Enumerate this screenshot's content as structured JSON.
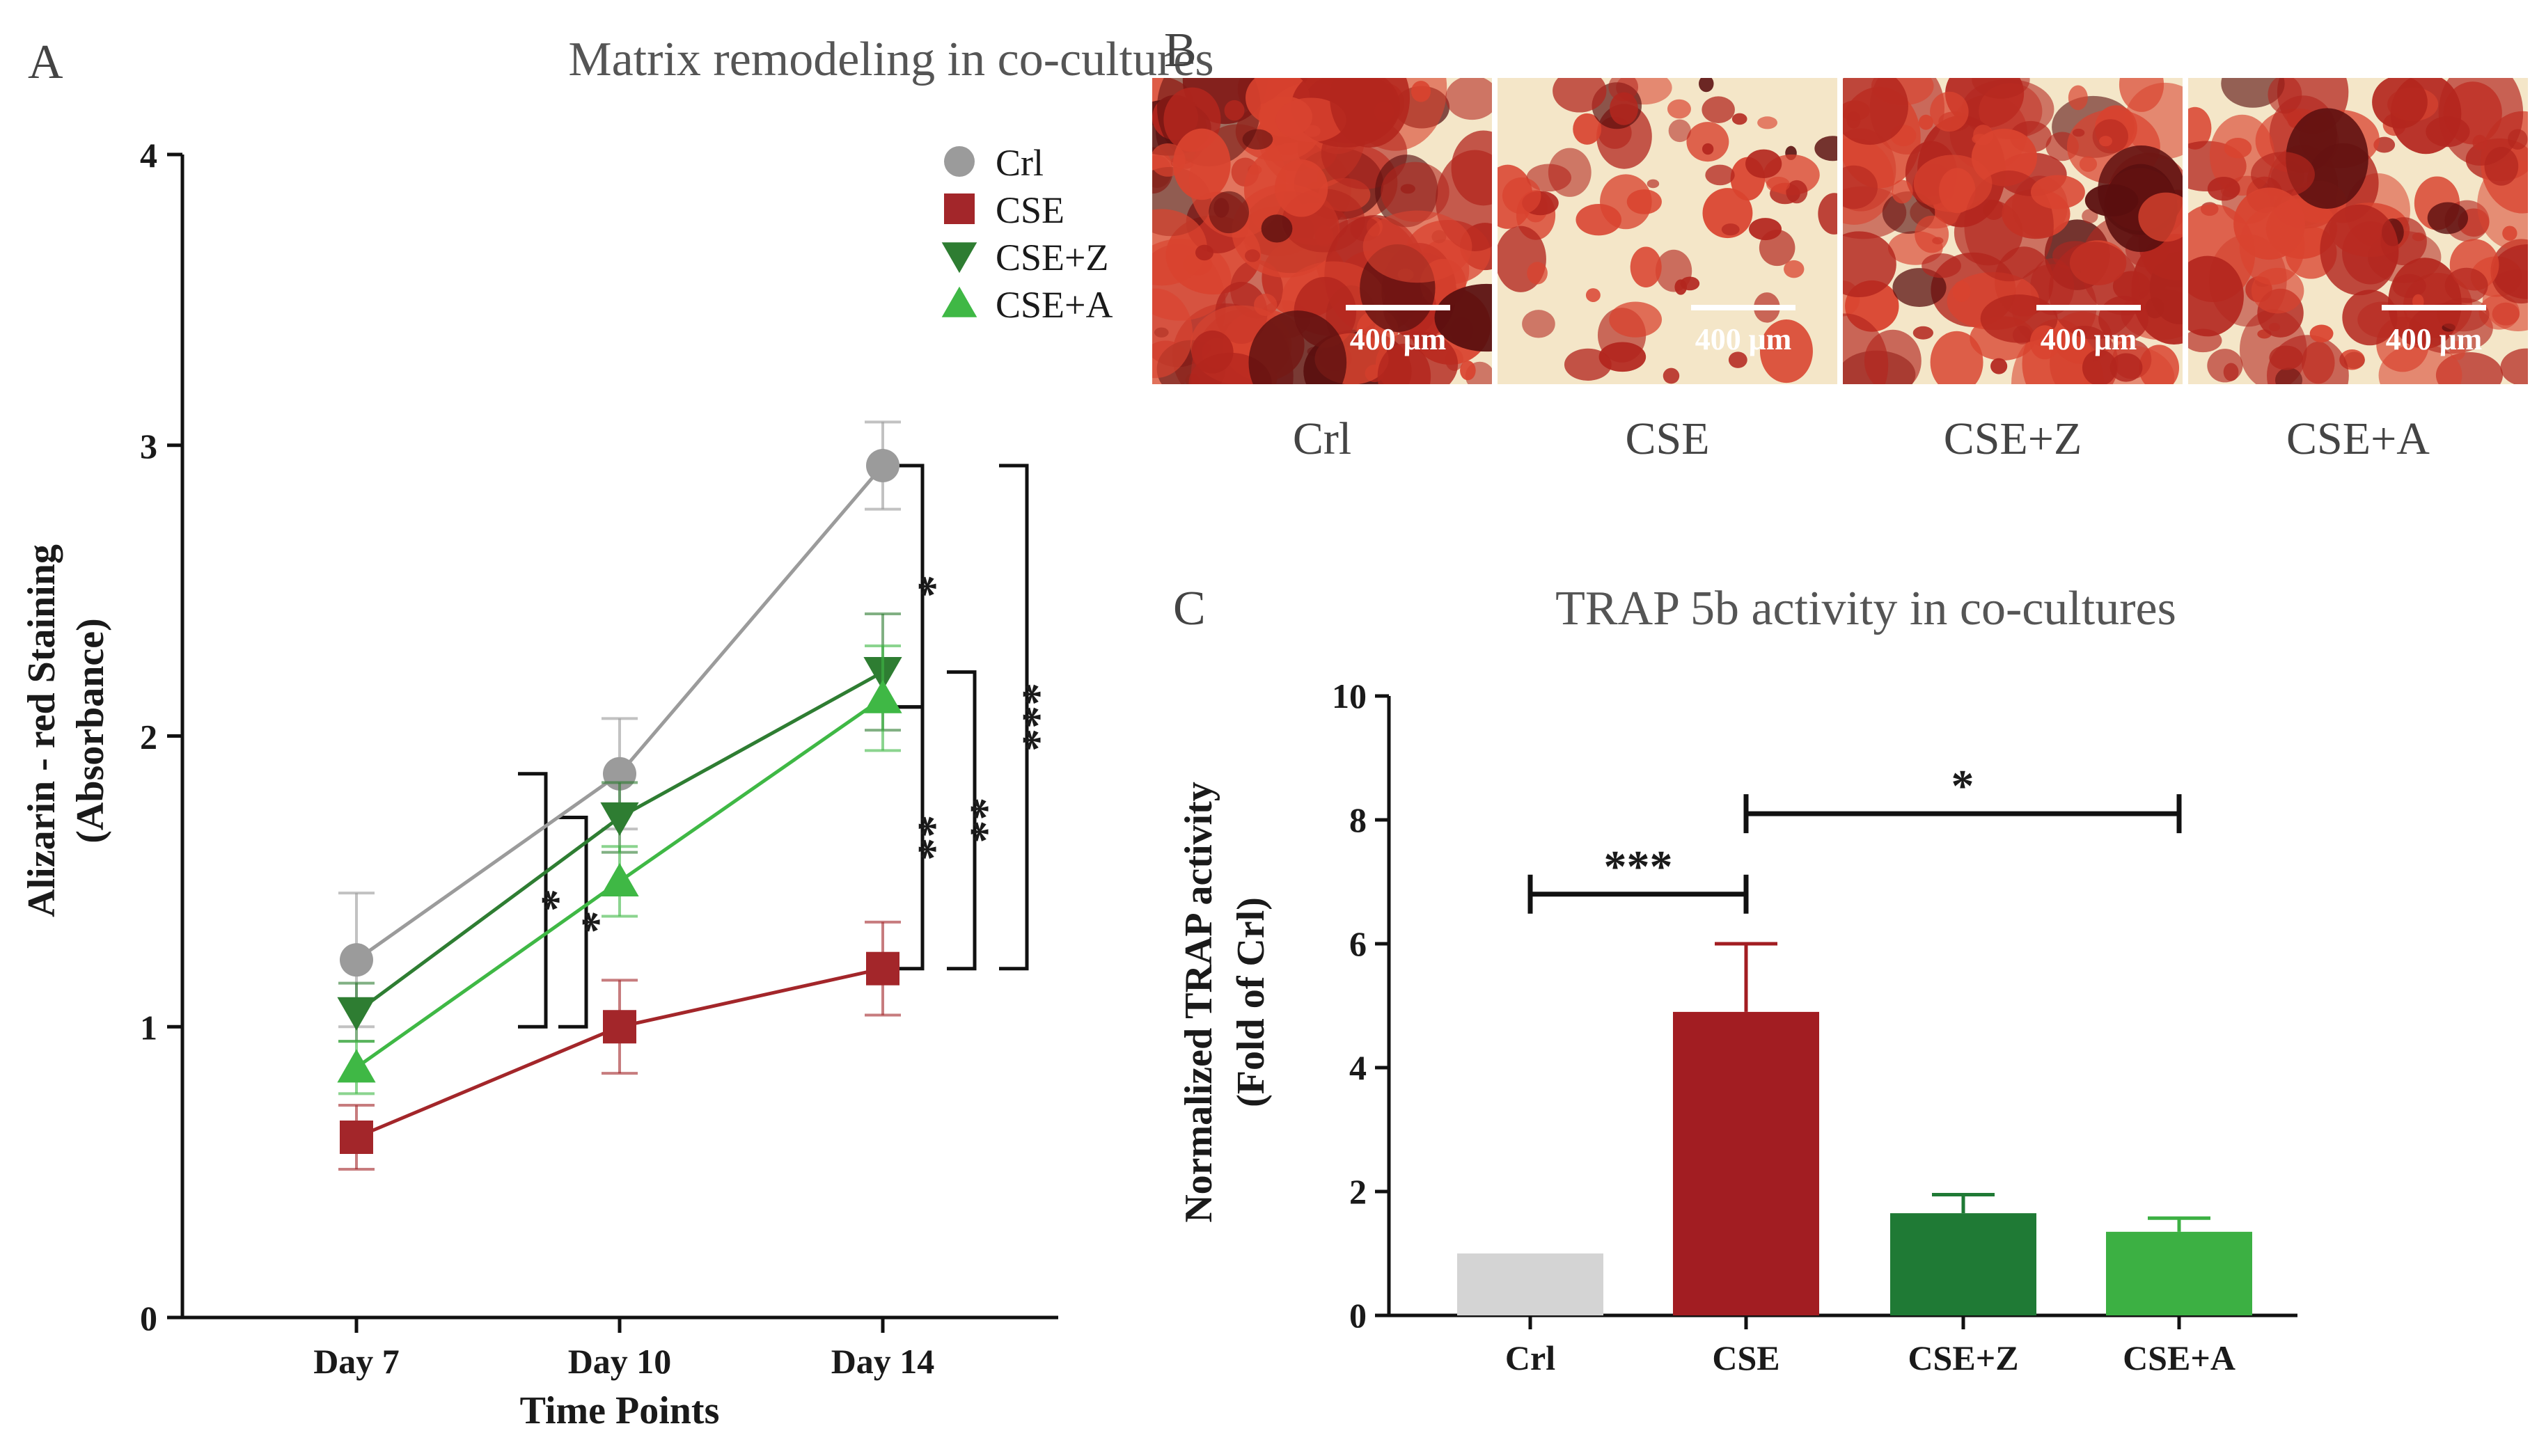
{
  "panel_labels": {
    "a": "A",
    "b": "B",
    "c": "C"
  },
  "panel_b": {
    "images": [
      {
        "caption": "Crl",
        "scale_bar": "400 μm",
        "stain_level": 0.9
      },
      {
        "caption": "CSE",
        "scale_bar": "400 μm",
        "stain_level": 0.25
      },
      {
        "caption": "CSE+Z",
        "scale_bar": "400 μm",
        "stain_level": 0.7
      },
      {
        "caption": "CSE+A",
        "scale_bar": "400 μm",
        "stain_level": 0.6
      }
    ]
  },
  "chart_data": [
    {
      "id": "A",
      "type": "line",
      "title": "Matrix remodeling in co-cultures",
      "xlabel": "Time Points",
      "ylabel": [
        "Alizarin - red Staining",
        "(Absorbance)"
      ],
      "categories": [
        "Day 7",
        "Day 10",
        "Day 14"
      ],
      "ylim": [
        0,
        4
      ],
      "yticks": [
        "0",
        "1",
        "2",
        "3",
        "4"
      ],
      "legend_position": "top-right",
      "series": [
        {
          "name": "Crl",
          "marker": "circle",
          "color": "#9b9b9b",
          "values": [
            1.23,
            1.87,
            2.93
          ],
          "errors": [
            0.23,
            0.19,
            0.15
          ]
        },
        {
          "name": "CSE",
          "marker": "square",
          "color": "#a3262a",
          "values": [
            0.62,
            1.0,
            1.2
          ],
          "errors": [
            0.11,
            0.16,
            0.16
          ]
        },
        {
          "name": "CSE+Z",
          "marker": "triangle-down",
          "color": "#2e7d32",
          "values": [
            1.05,
            1.72,
            2.22
          ],
          "errors": [
            0.1,
            0.12,
            0.2
          ]
        },
        {
          "name": "CSE+A",
          "marker": "triangle-up",
          "color": "#3fb845",
          "values": [
            0.86,
            1.5,
            2.13
          ],
          "errors": [
            0.09,
            0.12,
            0.18
          ]
        }
      ],
      "significance": [
        {
          "label": "*",
          "x": "Day 10",
          "between": [
            1.0,
            1.87
          ],
          "level": 0
        },
        {
          "label": "*",
          "x": "Day 10",
          "between": [
            1.0,
            1.72
          ],
          "level": 1
        },
        {
          "label": "*",
          "x": "Day 14",
          "between": [
            2.1,
            2.93
          ],
          "level": 0
        },
        {
          "label": "**",
          "x": "Day 14",
          "between": [
            1.2,
            2.1
          ],
          "level": 0
        },
        {
          "label": "**",
          "x": "Day 14",
          "between": [
            1.2,
            2.22
          ],
          "level": 1
        },
        {
          "label": "***",
          "x": "Day 14",
          "between": [
            1.2,
            2.93
          ],
          "level": 2
        }
      ]
    },
    {
      "id": "C",
      "type": "bar",
      "title": "TRAP 5b activity in co-cultures",
      "xlabel": "",
      "ylabel": [
        "Normalized TRAP activity",
        "(Fold of Crl)"
      ],
      "categories": [
        "Crl",
        "CSE",
        "CSE+Z",
        "CSE+A"
      ],
      "values": [
        1.0,
        4.9,
        1.65,
        1.35
      ],
      "errors": [
        0,
        1.1,
        0.3,
        0.22
      ],
      "colors": [
        "#d4d4d4",
        "#a21d22",
        "#1f7a35",
        "#3cb043"
      ],
      "ylim": [
        0,
        10
      ],
      "yticks": [
        "0",
        "2",
        "4",
        "6",
        "8",
        "10"
      ],
      "significance": [
        {
          "label": "***",
          "from": "Crl",
          "to": "CSE",
          "y": 6.8
        },
        {
          "label": "*",
          "from": "CSE",
          "to": "CSE+A",
          "y": 8.1
        }
      ]
    }
  ]
}
